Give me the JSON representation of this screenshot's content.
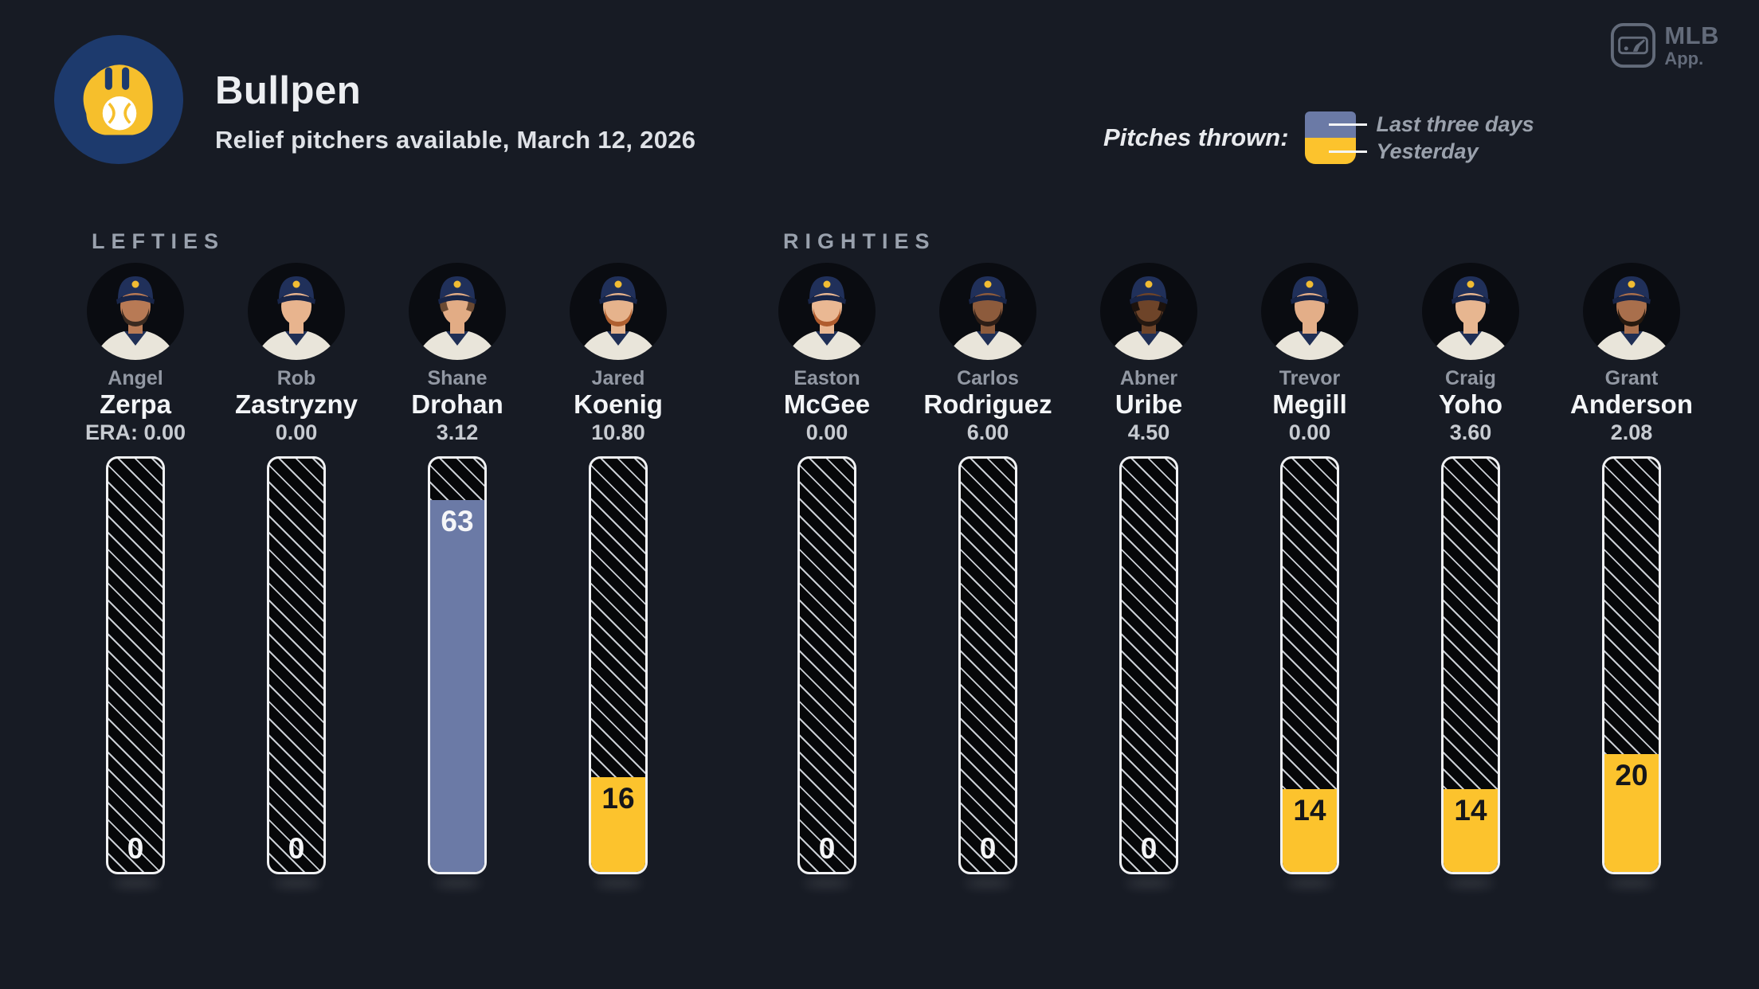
{
  "header": {
    "title": "Bullpen",
    "subtitle": "Relief pitchers available, March 12, 2026",
    "team_logo": "brewers-ball-in-glove-icon"
  },
  "mlb_app": {
    "line1": "MLB",
    "line2": "App."
  },
  "legend": {
    "label": "Pitches thrown:",
    "items": [
      {
        "name": "Last three days",
        "key": "last_three_days",
        "color": "#6b7aa6"
      },
      {
        "name": "Yesterday",
        "key": "yesterday",
        "color": "#fcc32d"
      }
    ]
  },
  "colors": {
    "background": "#171b24",
    "bar_border": "#f1f2f4",
    "bar_hatch_line": "#c9cdd3",
    "bar_hatch_bg": "#060709",
    "last_three_days": "#6b7aa6",
    "yesterday": "#fcc32d",
    "logo_navy": "#1d3a6d",
    "logo_gold": "#f6bf2c"
  },
  "chart_data": {
    "type": "bar",
    "orientation": "vertical",
    "unit": "pitches",
    "max_scale": 70,
    "title": "Bullpen",
    "subtitle": "Relief pitchers available, March 12, 2026",
    "legend_entries": [
      "Last three days",
      "Yesterday"
    ],
    "sections": [
      {
        "label": "LEFTIES",
        "players": [
          {
            "first": "Angel",
            "last": "Zerpa",
            "era": "ERA: 0.00",
            "pitches": 0,
            "period": null,
            "skin": "#b87a55",
            "beard": "#3a2a20",
            "hair": null
          },
          {
            "first": "Rob",
            "last": "Zastryzny",
            "era": "0.00",
            "pitches": 0,
            "period": null,
            "skin": "#e8b48e",
            "beard": null,
            "hair": null
          },
          {
            "first": "Shane",
            "last": "Drohan",
            "era": "3.12",
            "pitches": 63,
            "period": "last_three_days",
            "skin": "#e2ac85",
            "beard": null,
            "hair": "#6b4a33"
          },
          {
            "first": "Jared",
            "last": "Koenig",
            "era": "10.80",
            "pitches": 16,
            "period": "yesterday",
            "skin": "#e6b38c",
            "beard": "#b06030",
            "hair": null
          }
        ]
      },
      {
        "label": "RIGHTIES",
        "players": [
          {
            "first": "Easton",
            "last": "McGee",
            "era": "0.00",
            "pitches": 0,
            "period": null,
            "skin": "#eab893",
            "beard": "#b05c2e",
            "hair": null
          },
          {
            "first": "Carlos",
            "last": "Rodriguez",
            "era": "6.00",
            "pitches": 0,
            "period": null,
            "skin": "#8d5b3c",
            "beard": "#2c1d16",
            "hair": null
          },
          {
            "first": "Abner",
            "last": "Uribe",
            "era": "4.50",
            "pitches": 0,
            "period": null,
            "skin": "#6e4429",
            "beard": "#241811",
            "hair": "#1c120d"
          },
          {
            "first": "Trevor",
            "last": "Megill",
            "era": "0.00",
            "pitches": 14,
            "period": "yesterday",
            "skin": "#e3ae88",
            "beard": null,
            "hair": null
          },
          {
            "first": "Craig",
            "last": "Yoho",
            "era": "3.60",
            "pitches": 14,
            "period": "yesterday",
            "skin": "#e7b690",
            "beard": null,
            "hair": null
          },
          {
            "first": "Grant",
            "last": "Anderson",
            "era": "2.08",
            "pitches": 20,
            "period": "yesterday",
            "skin": "#a96f4c",
            "beard": "#26190f",
            "hair": null
          }
        ]
      }
    ]
  }
}
